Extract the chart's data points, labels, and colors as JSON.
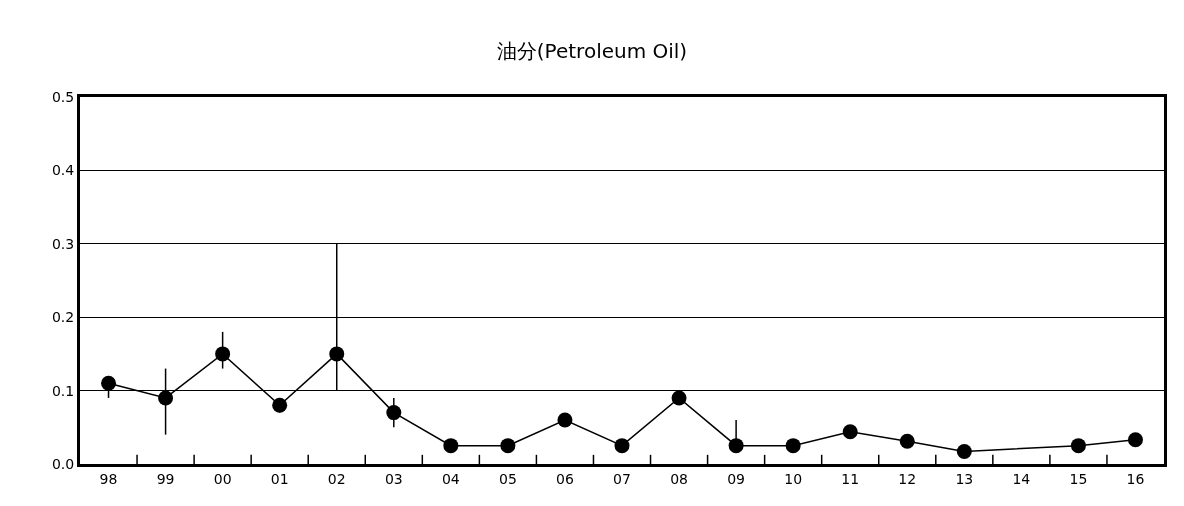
{
  "chart_data": {
    "type": "line",
    "title": "油分(Petroleum Oil)",
    "categories": [
      "98",
      "99",
      "00",
      "01",
      "02",
      "03",
      "04",
      "05",
      "06",
      "07",
      "08",
      "09",
      "10",
      "11",
      "12",
      "13",
      "14",
      "15",
      "16"
    ],
    "series": [
      {
        "color": "#000000",
        "values": [
          0.11,
          0.09,
          0.15,
          0.08,
          0.15,
          0.07,
          0.025,
          0.025,
          0.06,
          0.025,
          0.09,
          0.025,
          0.025,
          0.044,
          0.031,
          0.017,
          null,
          0.025,
          0.033
        ],
        "errors": [
          [
            0.09,
            0.12
          ],
          [
            0.04,
            0.13
          ],
          [
            0.13,
            0.18
          ],
          [
            0.07,
            0.09
          ],
          [
            0.1,
            0.3
          ],
          [
            0.05,
            0.09
          ],
          null,
          null,
          null,
          null,
          null,
          [
            0.025,
            0.06
          ],
          null,
          null,
          null,
          null,
          null,
          null,
          null
        ]
      }
    ],
    "ylim": [
      0,
      0.5
    ],
    "yticks": [
      {
        "value": 0,
        "label": "0.0"
      },
      0.1,
      0.2,
      0.3,
      0.4,
      0.5
    ],
    "grid": "y",
    "marker": "circle",
    "line_style": "solid"
  }
}
